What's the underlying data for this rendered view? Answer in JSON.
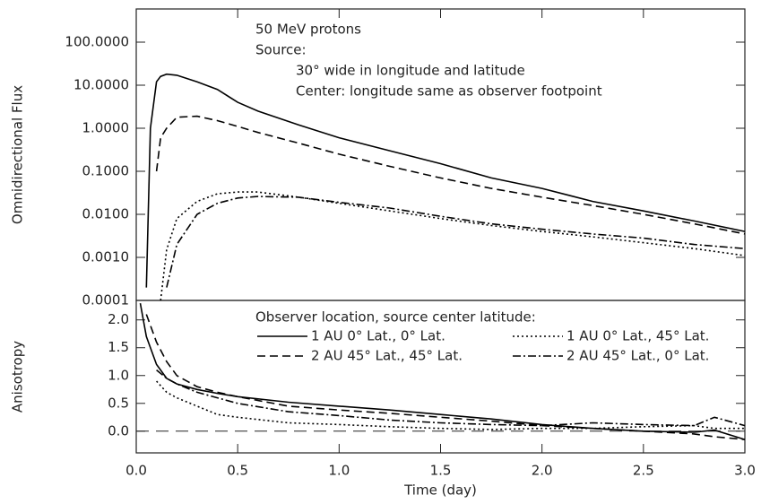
{
  "chart_data": [
    {
      "type": "line",
      "ylabel": "Omnidirectional Flux",
      "log_y": true,
      "annotations": [
        "50 MeV protons",
        "Source:",
        "30° wide in longitude and latitude",
        "Center: longitude same as observer footpoint"
      ],
      "xlim": [
        0,
        3
      ],
      "ylim": [
        0.0001,
        590
      ],
      "yticks": [
        {
          "value": 100,
          "label": "100.0000"
        },
        {
          "value": 10,
          "label": "10.0000"
        },
        {
          "value": 1,
          "label": "1.0000"
        },
        {
          "value": 0.1,
          "label": "0.1000"
        },
        {
          "value": 0.01,
          "label": "0.0100"
        },
        {
          "value": 0.001,
          "label": "0.0010"
        },
        {
          "value": 0.0001,
          "label": "0.0001"
        }
      ],
      "x": [
        0.05,
        0.07,
        0.1,
        0.12,
        0.15,
        0.2,
        0.3,
        0.4,
        0.5,
        0.6,
        0.8,
        1.0,
        1.25,
        1.5,
        1.75,
        2.0,
        2.25,
        2.5,
        2.75,
        3.0
      ],
      "series": [
        {
          "color": "#000000",
          "line_style": "solid",
          "values": [
            0.0002,
            1.0,
            12,
            16,
            18,
            17,
            12,
            8,
            4,
            2.5,
            1.2,
            0.6,
            0.3,
            0.15,
            0.07,
            0.04,
            0.02,
            0.012,
            0.007,
            0.004
          ]
        },
        {
          "color": "#000000",
          "line_style": "dashed",
          "values": [
            null,
            null,
            0.1,
            0.6,
            1.0,
            1.8,
            1.9,
            1.5,
            1.1,
            0.8,
            0.45,
            0.25,
            0.13,
            0.07,
            0.04,
            0.025,
            0.016,
            0.01,
            0.006,
            0.0035
          ]
        },
        {
          "color": "#000000",
          "line_style": "dotted",
          "values": [
            null,
            null,
            null,
            0.0001,
            0.0015,
            0.008,
            0.02,
            0.03,
            0.033,
            0.033,
            0.025,
            0.018,
            0.012,
            0.008,
            0.0055,
            0.004,
            0.003,
            0.0022,
            0.0016,
            0.0011
          ]
        },
        {
          "color": "#000000",
          "line_style": "dashdot",
          "values": [
            null,
            null,
            null,
            null,
            0.0002,
            0.002,
            0.01,
            0.018,
            0.024,
            0.026,
            0.025,
            0.019,
            0.014,
            0.009,
            0.006,
            0.0045,
            0.0035,
            0.0028,
            0.002,
            0.0016
          ]
        }
      ]
    },
    {
      "type": "line",
      "ylabel": "Anisotropy",
      "xlabel": "Time (day)",
      "legend_title": "Observer location, source center latitude:",
      "xlim": [
        0,
        3
      ],
      "ylim": [
        -0.39,
        2.35
      ],
      "hline": 0,
      "xticks": [
        {
          "value": 0,
          "label": "0.0"
        },
        0.5,
        {
          "value": 1,
          "label": "1.0"
        },
        1.5,
        {
          "value": 2,
          "label": "2.0"
        },
        2.5,
        {
          "value": 3,
          "label": "3.0"
        }
      ],
      "yticks": [
        {
          "value": 2,
          "label": "2.0"
        },
        1.5,
        {
          "value": 1,
          "label": "1.0"
        },
        0.5,
        {
          "value": 0,
          "label": "0.0"
        }
      ],
      "x": [
        0.02,
        0.05,
        0.1,
        0.15,
        0.2,
        0.3,
        0.4,
        0.5,
        0.75,
        1.0,
        1.25,
        1.5,
        1.75,
        2.0,
        2.25,
        2.5,
        2.75,
        2.85,
        3.0
      ],
      "series": [
        {
          "name": "1 AU 0° Lat., 0° Lat.",
          "color": "#000000",
          "line_style": "solid",
          "values": [
            2.3,
            1.7,
            1.2,
            0.95,
            0.85,
            0.75,
            0.68,
            0.62,
            0.52,
            0.45,
            0.38,
            0.3,
            0.22,
            0.12,
            0.05,
            0.0,
            -0.02,
            0.02,
            -0.15
          ]
        },
        {
          "name": "1 AU 0° Lat., 45° Lat.",
          "color": "#000000",
          "line_style": "dotted",
          "values": [
            null,
            null,
            0.9,
            0.7,
            0.6,
            0.45,
            0.3,
            0.25,
            0.15,
            0.12,
            0.08,
            0.05,
            0.03,
            0.05,
            0.05,
            0.08,
            0.1,
            0.05,
            0.05
          ]
        },
        {
          "name": "2 AU 45° Lat., 45° Lat.",
          "color": "#000000",
          "line_style": "dashed",
          "values": [
            null,
            2.1,
            1.6,
            1.25,
            1.0,
            0.8,
            0.7,
            0.62,
            0.45,
            0.38,
            0.32,
            0.25,
            0.18,
            0.1,
            0.05,
            0.0,
            -0.05,
            -0.1,
            -0.15
          ]
        },
        {
          "name": "2 AU 45° Lat., 0° Lat.",
          "color": "#000000",
          "line_style": "dashdot",
          "values": [
            null,
            null,
            1.1,
            0.95,
            0.85,
            0.7,
            0.6,
            0.5,
            0.35,
            0.28,
            0.2,
            0.15,
            0.12,
            0.1,
            0.15,
            0.12,
            0.1,
            0.25,
            0.1
          ]
        }
      ]
    }
  ]
}
